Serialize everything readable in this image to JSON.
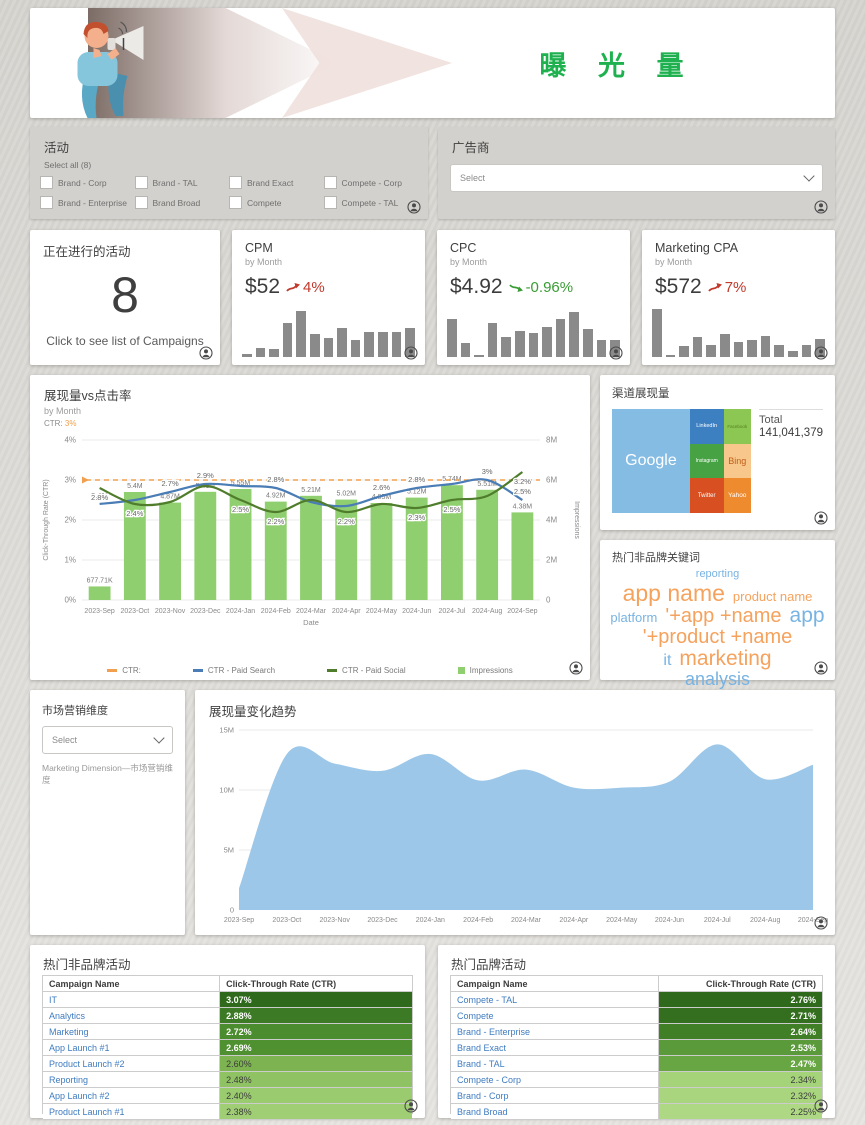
{
  "header": {
    "title": "曝 光 量"
  },
  "filters": {
    "campaign": {
      "title": "活动",
      "select_all": "Select all (8)",
      "options": [
        "Brand - Corp",
        "Brand - TAL",
        "Brand Exact",
        "Compete - Corp",
        "Brand - Enterprise",
        "Brand Broad",
        "Compete",
        "Compete - TAL"
      ]
    },
    "advertiser": {
      "title": "广告商",
      "placeholder": "Select"
    }
  },
  "kpis": {
    "active": {
      "title": "正在进行的活动",
      "value": "8",
      "link": "Click to see list of Campaigns"
    },
    "cpm": {
      "title": "CPM",
      "subtitle": "by Month",
      "value": "$52",
      "delta": "4%",
      "dir": "up",
      "delta_color": "#c0392b",
      "bars": [
        0.05,
        0.14,
        0.13,
        0.55,
        0.75,
        0.37,
        0.3,
        0.46,
        0.27,
        0.4,
        0.4,
        0.4,
        0.46
      ]
    },
    "cpc": {
      "title": "CPC",
      "subtitle": "by Month",
      "value": "$4.92",
      "delta": "-0.96%",
      "dir": "down",
      "delta_color": "#3a9c35",
      "bars": [
        0.62,
        0.22,
        0.04,
        0.55,
        0.33,
        0.42,
        0.38,
        0.48,
        0.62,
        0.72,
        0.45,
        0.28,
        0.27
      ]
    },
    "cpa": {
      "title": "Marketing CPA",
      "subtitle": "by Month",
      "value": "$572",
      "delta": "7%",
      "dir": "up",
      "delta_color": "#c0392b",
      "bars": [
        0.78,
        0.04,
        0.18,
        0.33,
        0.2,
        0.37,
        0.25,
        0.27,
        0.34,
        0.2,
        0.1,
        0.19,
        0.29
      ]
    }
  },
  "chart_data": [
    {
      "id": "impressions_vs_ctr",
      "type": "combo",
      "title": "展现量vs点击率",
      "subtitle": "by Month",
      "kpi_label": "CTR:",
      "kpi_value": "3%",
      "categories": [
        "2023-Sep",
        "2023-Oct",
        "2023-Nov",
        "2023-Dec",
        "2024-Jan",
        "2024-Feb",
        "2024-Mar",
        "2024-Apr",
        "2024-May",
        "2024-Jun",
        "2024-Jul",
        "2024-Aug",
        "2024-Sep"
      ],
      "xlabel": "Date",
      "y_left": {
        "label": "Click-Through Rate (CTR)",
        "ticks": [
          "0%",
          "1%",
          "2%",
          "3%",
          "4%"
        ],
        "max": 4
      },
      "y_right": {
        "label": "Impressions",
        "ticks": [
          "0",
          "2M",
          "4M",
          "6M",
          "8M"
        ],
        "max": 8
      },
      "ref_line": {
        "value": 3,
        "color": "#f0a04e"
      },
      "bars": {
        "name": "Impressions",
        "color": "#90cf70",
        "values_m": [
          0.678,
          5.4,
          4.87,
          5.41,
          5.55,
          4.92,
          5.21,
          5.02,
          4.85,
          5.12,
          5.74,
          5.51,
          4.38
        ],
        "labels": [
          "677.71K",
          "5.4M",
          "4.87M",
          "5.41M",
          "5.55M",
          "4.92M",
          "5.21M",
          "5.02M",
          "4.85M",
          "5.12M",
          "5.74M",
          "5.51M",
          "4.38M"
        ]
      },
      "series": [
        {
          "name": "CTR - Paid Search",
          "color": "#4a7cb5",
          "values": [
            2.4,
            2.5,
            2.7,
            2.9,
            2.85,
            2.8,
            2.45,
            2.35,
            2.6,
            2.8,
            2.9,
            3.0,
            2.5
          ],
          "labels": [
            "2.4%",
            null,
            "2.7%",
            "2.9%",
            null,
            "2.8%",
            null,
            null,
            "2.6%",
            "2.8%",
            null,
            "3%",
            "2.5%"
          ]
        },
        {
          "name": "CTR - Paid Social",
          "color": "#4f7d2c",
          "values": [
            2.8,
            2.4,
            2.45,
            2.85,
            2.5,
            2.2,
            2.5,
            2.2,
            2.4,
            2.3,
            2.5,
            2.6,
            3.2
          ],
          "labels": [
            "2.8%",
            "2.4%",
            null,
            null,
            "2.5%",
            "2.2%",
            null,
            "2.2%",
            null,
            "2.3%",
            "2.5%",
            null,
            "3.2%"
          ]
        }
      ],
      "legend": [
        {
          "label": "CTR:",
          "color": "#f0a04e",
          "shape": "dash"
        },
        {
          "label": "CTR - Paid Search",
          "color": "#4a7cb5",
          "shape": "dash"
        },
        {
          "label": "CTR - Paid Social",
          "color": "#4f7d2c",
          "shape": "dash"
        },
        {
          "label": "Impressions",
          "color": "#90cf70",
          "shape": "square"
        }
      ]
    },
    {
      "id": "impressions_trend",
      "type": "area",
      "title": "展现量变化趋势",
      "categories": [
        "2023-Sep",
        "2023-Oct",
        "2023-Nov",
        "2023-Dec",
        "2024-Jan",
        "2024-Feb",
        "2024-Mar",
        "2024-Apr",
        "2024-May",
        "2024-Jun",
        "2024-Jul",
        "2024-Aug",
        "2024-Sep"
      ],
      "values_m": [
        1.8,
        13,
        12.2,
        11.6,
        13,
        10.8,
        11.7,
        10.2,
        10.2,
        10.7,
        13.8,
        10.9,
        12.1
      ],
      "yticks": [
        "0",
        "5M",
        "10M",
        "15M"
      ],
      "ymax": 15,
      "color": "#9cc7e8"
    }
  ],
  "treemap": {
    "title": "渠道展现量",
    "total_label": "Total",
    "total_value": "141,041,379",
    "main": {
      "name": "Google",
      "color": "#85bce4",
      "text": "#ffffff"
    },
    "tiles": [
      [
        {
          "name": "LinkedIn",
          "color": "#3c80c2",
          "text": "#ffffff",
          "size": 5.5
        },
        {
          "name": "Facebook",
          "color": "#8cc653",
          "text": "#55821f",
          "size": 4.5
        }
      ],
      [
        {
          "name": "Instagram",
          "color": "#47a244",
          "text": "#ffffff",
          "size": 5
        },
        {
          "name": "Bing",
          "color": "#f7c78c",
          "text": "#c05f17",
          "size": 9
        }
      ],
      [
        {
          "name": "Twitter",
          "color": "#d84f21",
          "text": "#ffffff",
          "size": 6
        },
        {
          "name": "Yahoo",
          "color": "#ef8b2f",
          "text": "#ffffff",
          "size": 6.5
        }
      ]
    ]
  },
  "wordcloud": {
    "title": "热门非品牌关键词",
    "rows": [
      [
        {
          "t": "reporting",
          "c": "#78b3e2",
          "s": 11
        }
      ],
      [
        {
          "t": "app name",
          "c": "#f5a25d",
          "s": 23
        },
        {
          "t": "product name",
          "c": "#f5a25d",
          "s": 13
        }
      ],
      [
        {
          "t": "platform",
          "c": "#78b3e2",
          "s": 13
        },
        {
          "t": "'+app +name",
          "c": "#f5a25d",
          "s": 20
        },
        {
          "t": "app",
          "c": "#78b3e2",
          "s": 21
        }
      ],
      [
        {
          "t": "'+product +name",
          "c": "#f5a25d",
          "s": 20
        }
      ],
      [
        {
          "t": "it",
          "c": "#78b3e2",
          "s": 16
        },
        {
          "t": "marketing",
          "c": "#f5a25d",
          "s": 21
        }
      ],
      [
        {
          "t": "analysis",
          "c": "#78b3e2",
          "s": 18
        }
      ]
    ]
  },
  "dimension": {
    "title": "市场营销维度",
    "placeholder": "Select",
    "caption": "Marketing Dimension—市场营销维度"
  },
  "tables": {
    "nonbrand": {
      "title": "热门非品牌活动",
      "col1": "Campaign Name",
      "col2": "Click-Through Rate (CTR)",
      "value_align": "left",
      "rows": [
        {
          "name": "IT",
          "ctr": "3.07%",
          "bg": "#2f6a1c",
          "light": true
        },
        {
          "name": "Analytics",
          "ctr": "2.88%",
          "bg": "#3c7a25",
          "light": true
        },
        {
          "name": "Marketing",
          "ctr": "2.72%",
          "bg": "#4b8c2e",
          "light": true
        },
        {
          "name": "App Launch #1",
          "ctr": "2.69%",
          "bg": "#4f9031",
          "light": true
        },
        {
          "name": "Product Launch #2",
          "ctr": "2.60%",
          "bg": "#7db351",
          "light": false
        },
        {
          "name": "Reporting",
          "ctr": "2.48%",
          "bg": "#8fc263",
          "light": false
        },
        {
          "name": "App Launch #2",
          "ctr": "2.40%",
          "bg": "#9bcb6f",
          "light": false
        },
        {
          "name": "Product Launch #1",
          "ctr": "2.38%",
          "bg": "#a0ce74",
          "light": false
        }
      ]
    },
    "brand": {
      "title": "热门品牌活动",
      "col1": "Campaign Name",
      "col2": "Click-Through Rate (CTR)",
      "value_align": "right",
      "rows": [
        {
          "name": "Compete - TAL",
          "ctr": "2.76%",
          "bg": "#2f6a1c",
          "light": true
        },
        {
          "name": "Compete",
          "ctr": "2.71%",
          "bg": "#346f1f",
          "light": true
        },
        {
          "name": "Brand - Enterprise",
          "ctr": "2.64%",
          "bg": "#417f27",
          "light": true
        },
        {
          "name": "Brand Exact",
          "ctr": "2.53%",
          "bg": "#5a9a3b",
          "light": true
        },
        {
          "name": "Brand - TAL",
          "ctr": "2.47%",
          "bg": "#68a644",
          "light": true
        },
        {
          "name": "Compete - Corp",
          "ctr": "2.34%",
          "bg": "#a5d37a",
          "light": false
        },
        {
          "name": "Brand - Corp",
          "ctr": "2.32%",
          "bg": "#a9d57e",
          "light": false
        },
        {
          "name": "Brand Broad",
          "ctr": "2.25%",
          "bg": "#aed883",
          "light": false
        }
      ]
    }
  }
}
